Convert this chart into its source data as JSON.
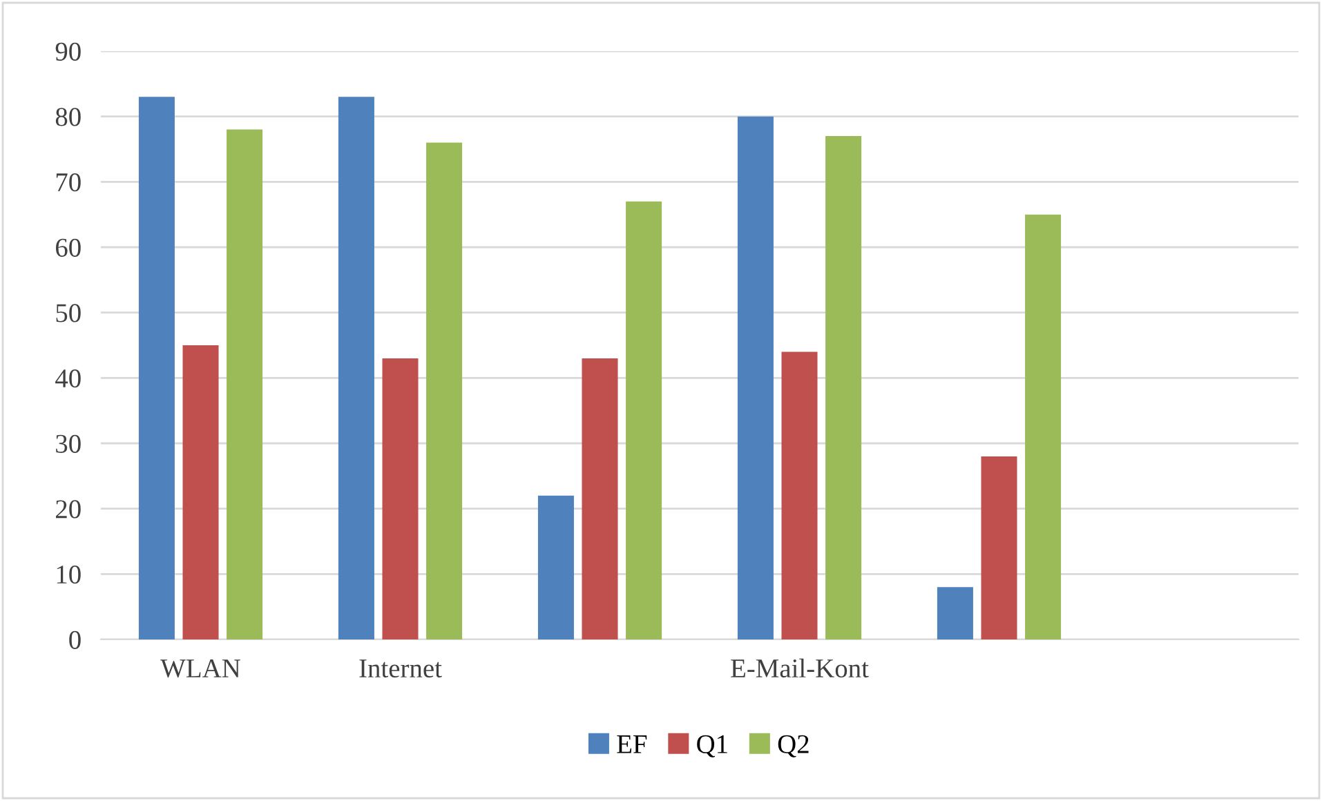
{
  "chart_data": {
    "type": "bar",
    "categories": [
      "WLAN",
      "Internet",
      null,
      "E-Mail-Kont",
      null,
      null
    ],
    "series": [
      {
        "name": "EF",
        "color": "#4f81bd",
        "values": [
          83,
          83,
          22,
          80,
          8,
          null
        ]
      },
      {
        "name": "Q1",
        "color": "#c0504d",
        "values": [
          45,
          43,
          43,
          44,
          28,
          null
        ]
      },
      {
        "name": "Q2",
        "color": "#9bbb59",
        "values": [
          78,
          76,
          67,
          77,
          65,
          null
        ]
      }
    ],
    "ylim": [
      0,
      90
    ],
    "yticks": [
      0,
      10,
      20,
      30,
      40,
      50,
      60,
      70,
      80,
      90
    ],
    "grid": "y",
    "legend": "bottom"
  }
}
